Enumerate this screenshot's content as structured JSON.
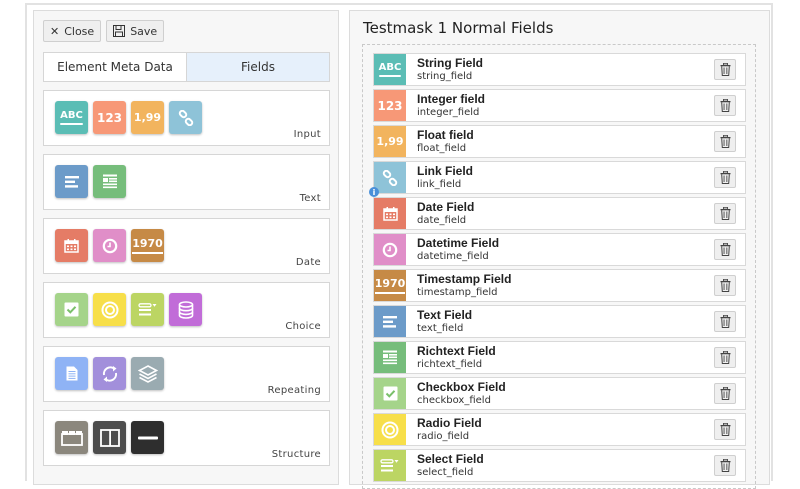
{
  "toolbar": {
    "close_label": "Close",
    "save_label": "Save"
  },
  "tabs": [
    {
      "label": "Element Meta Data",
      "active": false
    },
    {
      "label": "Fields",
      "active": true
    }
  ],
  "palette_groups": [
    {
      "label": "Input",
      "items": [
        {
          "icon": "abc-icon",
          "text": "ABC",
          "color": "#5bbdb5"
        },
        {
          "icon": "integer-icon",
          "text": "123",
          "color": "#f79877"
        },
        {
          "icon": "float-icon",
          "text": "1,99",
          "color": "#f2b45e"
        },
        {
          "icon": "link-icon",
          "text": "",
          "color": "#8ec3d8"
        }
      ]
    },
    {
      "label": "Text",
      "items": [
        {
          "icon": "text-icon",
          "text": "",
          "color": "#6c9bc9"
        },
        {
          "icon": "richtext-icon",
          "text": "",
          "color": "#76bd7b"
        }
      ]
    },
    {
      "label": "Date",
      "items": [
        {
          "icon": "calendar-icon",
          "text": "",
          "color": "#e57c66"
        },
        {
          "icon": "clock-icon",
          "text": "",
          "color": "#e08ec8"
        },
        {
          "icon": "timestamp-icon",
          "text": "1970",
          "color": "#c68a46"
        }
      ]
    },
    {
      "label": "Choice",
      "items": [
        {
          "icon": "checkbox-icon",
          "text": "",
          "color": "#a5d48a"
        },
        {
          "icon": "radio-icon",
          "text": "",
          "color": "#f7df4a"
        },
        {
          "icon": "select-icon",
          "text": "",
          "color": "#bcd563"
        },
        {
          "icon": "database-icon",
          "text": "",
          "color": "#c16cd8"
        }
      ]
    },
    {
      "label": "Repeating",
      "items": [
        {
          "icon": "document-icon",
          "text": "",
          "color": "#8fb3f5"
        },
        {
          "icon": "repeat-icon",
          "text": "",
          "color": "#a28fdb"
        },
        {
          "icon": "layers-icon",
          "text": "",
          "color": "#9aabb1"
        }
      ]
    },
    {
      "label": "Structure",
      "items": [
        {
          "icon": "tabs-icon",
          "text": "",
          "color": "#8b877d"
        },
        {
          "icon": "columns-icon",
          "text": "",
          "color": "#4d4d4d"
        },
        {
          "icon": "divider-icon",
          "text": "",
          "color": "#2e2e2e"
        }
      ]
    }
  ],
  "form": {
    "title": "Testmask 1 Normal Fields",
    "fields": [
      {
        "name": "String Field",
        "key": "string_field",
        "icon": "abc-icon",
        "text": "ABC",
        "color": "#5bbdb5"
      },
      {
        "name": "Integer field",
        "key": "integer_field",
        "icon": "integer-icon",
        "text": "123",
        "color": "#f79877"
      },
      {
        "name": "Float field",
        "key": "float_field",
        "icon": "float-icon",
        "text": "1,99",
        "color": "#f2b45e"
      },
      {
        "name": "Link Field",
        "key": "link_field",
        "icon": "link-icon",
        "text": "",
        "color": "#8ec3d8",
        "info": "i"
      },
      {
        "name": "Date Field",
        "key": "date_field",
        "icon": "calendar-icon",
        "text": "",
        "color": "#e57c66"
      },
      {
        "name": "Datetime Field",
        "key": "datetime_field",
        "icon": "clock-icon",
        "text": "",
        "color": "#e08ec8"
      },
      {
        "name": "Timestamp Field",
        "key": "timestamp_field",
        "icon": "timestamp-icon",
        "text": "1970",
        "color": "#c68a46"
      },
      {
        "name": "Text Field",
        "key": "text_field",
        "icon": "text-icon",
        "text": "",
        "color": "#6c9bc9"
      },
      {
        "name": "Richtext Field",
        "key": "richtext_field",
        "icon": "richtext-icon",
        "text": "",
        "color": "#76bd7b"
      },
      {
        "name": "Checkbox Field",
        "key": "checkbox_field",
        "icon": "checkbox-icon",
        "text": "",
        "color": "#a5d48a"
      },
      {
        "name": "Radio Field",
        "key": "radio_field",
        "icon": "radio-icon",
        "text": "",
        "color": "#f7df4a"
      },
      {
        "name": "Select Field",
        "key": "select_field",
        "icon": "select-icon",
        "text": "",
        "color": "#bcd563"
      }
    ]
  }
}
